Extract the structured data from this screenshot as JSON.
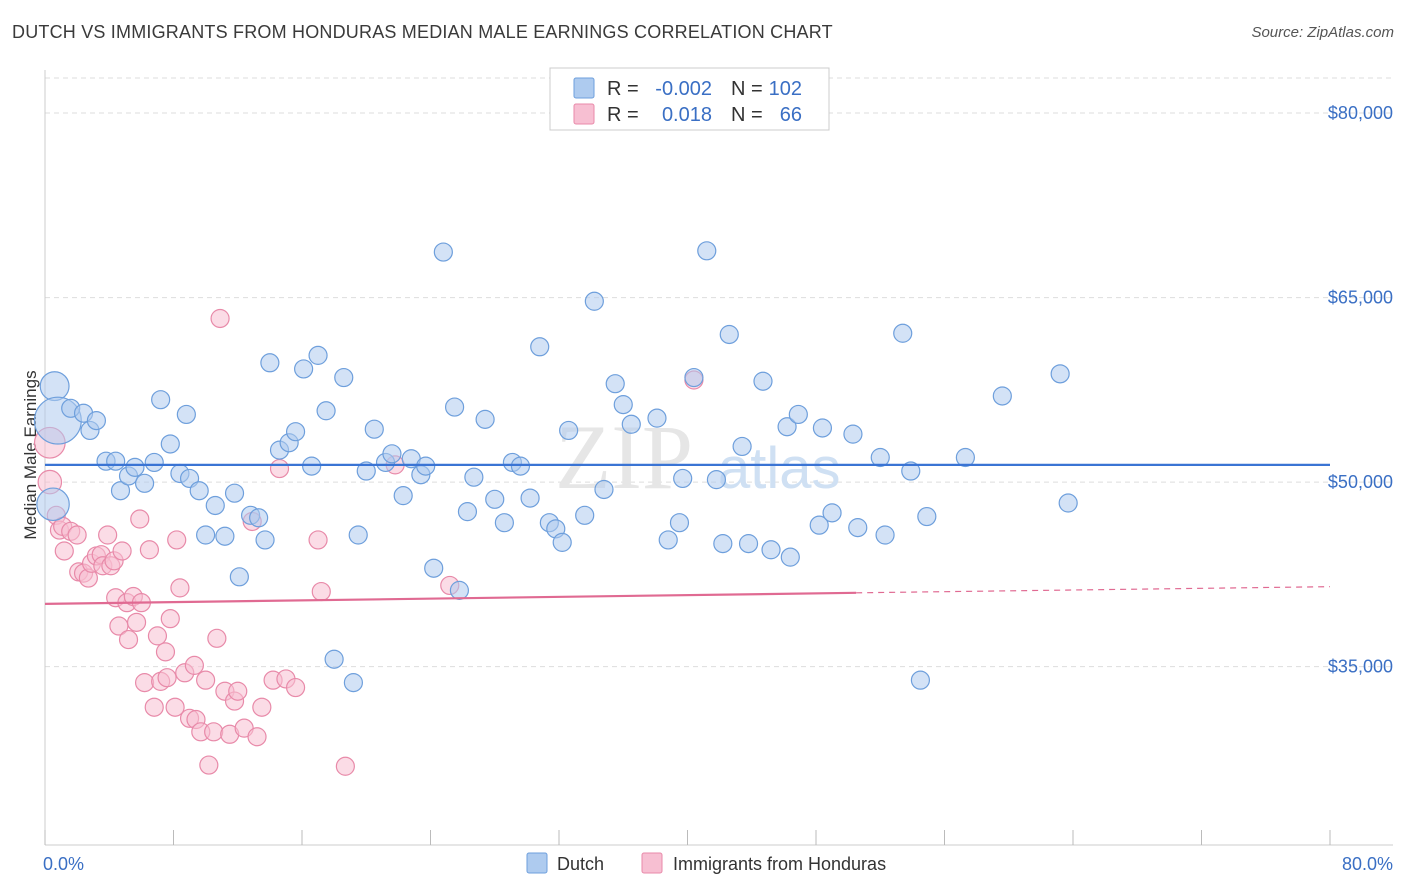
{
  "title": "DUTCH VS IMMIGRANTS FROM HONDURAS MEDIAN MALE EARNINGS CORRELATION CHART",
  "source": "Source: ZipAtlas.com",
  "watermark": {
    "zip": "ZIP",
    "atlas": "atlas"
  },
  "legend_box": {
    "rows": [
      {
        "r_label": "R =",
        "r_value": "-0.002",
        "n_label": "N =",
        "n_value": "102"
      },
      {
        "r_label": "R =",
        "r_value": "0.018",
        "n_label": "N =",
        "n_value": "66"
      }
    ]
  },
  "colors": {
    "dutch_fill": "#aecbef",
    "dutch_stroke": "#6e9fdc",
    "dutch_line": "#3a74d4",
    "hond_fill": "#f7bfd2",
    "hond_stroke": "#e88aa9",
    "hond_line": "#e06a92",
    "axis_text": "#3a6fc4",
    "grid": "#dddddd"
  },
  "chart_data": {
    "type": "scatter",
    "title": "DUTCH VS IMMIGRANTS FROM HONDURAS MEDIAN MALE EARNINGS CORRELATION CHART",
    "xlabel": "",
    "ylabel": "Median Male Earnings",
    "xlim": [
      0,
      80
    ],
    "ylim": [
      20500,
      83500
    ],
    "x_tick_labels": [
      "0.0%",
      "80.0%"
    ],
    "y_ticks": [
      35000,
      50000,
      65000,
      80000
    ],
    "y_tick_labels": [
      "$35,000",
      "$50,000",
      "$65,000",
      "$80,000"
    ],
    "grid": true,
    "legend_position": "bottom",
    "series": [
      {
        "name": "Dutch",
        "R": -0.002,
        "N": 102,
        "trend": {
          "x": [
            0,
            80
          ],
          "y": [
            51400,
            51400
          ]
        },
        "points": [
          [
            0.6,
            57800,
            1.6
          ],
          [
            0.8,
            55000,
            2.6
          ],
          [
            0.5,
            48200,
            1.8
          ],
          [
            1.6,
            56000,
            1.0
          ],
          [
            2.4,
            55600,
            1.0
          ],
          [
            2.8,
            54200,
            1.0
          ],
          [
            3.2,
            55000,
            1.0
          ],
          [
            3.8,
            51700,
            1.0
          ],
          [
            4.4,
            51700,
            1.0
          ],
          [
            4.7,
            49300,
            1.0
          ],
          [
            5.2,
            50500,
            1.0
          ],
          [
            5.6,
            51200,
            1.0
          ],
          [
            6.2,
            49900,
            1.0
          ],
          [
            6.8,
            51600,
            1.0
          ],
          [
            7.2,
            56700,
            1.0
          ],
          [
            7.8,
            53100,
            1.0
          ],
          [
            8.4,
            50700,
            1.0
          ],
          [
            8.8,
            55500,
            1.0
          ],
          [
            9.0,
            50300,
            1.0
          ],
          [
            9.6,
            49300,
            1.0
          ],
          [
            10.0,
            45700,
            1.0
          ],
          [
            10.6,
            48100,
            1.0
          ],
          [
            11.2,
            45600,
            1.0
          ],
          [
            11.8,
            49100,
            1.0
          ],
          [
            12.1,
            42300,
            1.0
          ],
          [
            12.8,
            47300,
            1.0
          ],
          [
            13.3,
            47100,
            1.0
          ],
          [
            13.7,
            45300,
            1.0
          ],
          [
            14.0,
            59700,
            1.0
          ],
          [
            14.6,
            52600,
            1.0
          ],
          [
            15.2,
            53200,
            1.0
          ],
          [
            15.6,
            54100,
            1.0
          ],
          [
            16.1,
            59200,
            1.0
          ],
          [
            16.6,
            51300,
            1.0
          ],
          [
            17.0,
            60300,
            1.0
          ],
          [
            17.5,
            55800,
            1.0
          ],
          [
            18.0,
            35600,
            1.0
          ],
          [
            18.6,
            58500,
            1.0
          ],
          [
            19.2,
            33700,
            1.0
          ],
          [
            19.5,
            45700,
            1.0
          ],
          [
            20.0,
            50900,
            1.0
          ],
          [
            20.5,
            54300,
            1.0
          ],
          [
            21.2,
            51600,
            1.0
          ],
          [
            21.6,
            52300,
            1.0
          ],
          [
            22.3,
            48900,
            1.0
          ],
          [
            22.8,
            51900,
            1.0
          ],
          [
            23.4,
            50600,
            1.0
          ],
          [
            23.7,
            51300,
            1.0
          ],
          [
            24.2,
            43000,
            1.0
          ],
          [
            24.8,
            68700,
            1.0
          ],
          [
            25.5,
            56100,
            1.0
          ],
          [
            25.8,
            41200,
            1.0
          ],
          [
            26.3,
            47600,
            1.0
          ],
          [
            26.7,
            50400,
            1.0
          ],
          [
            27.4,
            55100,
            1.0
          ],
          [
            28.0,
            48600,
            1.0
          ],
          [
            28.6,
            46700,
            1.0
          ],
          [
            29.1,
            51600,
            1.0
          ],
          [
            29.6,
            51300,
            1.0
          ],
          [
            30.2,
            48700,
            1.0
          ],
          [
            30.8,
            61000,
            1.0
          ],
          [
            31.4,
            46700,
            1.0
          ],
          [
            31.8,
            46200,
            1.0
          ],
          [
            32.2,
            45100,
            1.0
          ],
          [
            32.6,
            54200,
            1.0
          ],
          [
            33.6,
            47300,
            1.0
          ],
          [
            34.2,
            64700,
            1.0
          ],
          [
            34.8,
            49400,
            1.0
          ],
          [
            35.5,
            58000,
            1.0
          ],
          [
            36.0,
            56300,
            1.0
          ],
          [
            36.5,
            54700,
            1.0
          ],
          [
            38.1,
            55200,
            1.0
          ],
          [
            38.8,
            45300,
            1.0
          ],
          [
            39.5,
            46700,
            1.0
          ],
          [
            39.7,
            50300,
            1.0
          ],
          [
            40.4,
            58500,
            1.0
          ],
          [
            41.2,
            68800,
            1.0
          ],
          [
            41.8,
            50200,
            1.0
          ],
          [
            42.2,
            45000,
            1.0
          ],
          [
            42.6,
            62000,
            1.0
          ],
          [
            43.4,
            52900,
            1.0
          ],
          [
            43.8,
            45000,
            1.0
          ],
          [
            44.7,
            58200,
            1.0
          ],
          [
            45.2,
            44500,
            1.0
          ],
          [
            46.2,
            54500,
            1.0
          ],
          [
            46.4,
            43900,
            1.0
          ],
          [
            46.9,
            55500,
            1.0
          ],
          [
            48.2,
            46500,
            1.0
          ],
          [
            48.4,
            54400,
            1.0
          ],
          [
            49.0,
            47500,
            1.0
          ],
          [
            50.3,
            53900,
            1.0
          ],
          [
            50.6,
            46300,
            1.0
          ],
          [
            52.0,
            52000,
            1.0
          ],
          [
            52.3,
            45700,
            1.0
          ],
          [
            53.4,
            62100,
            1.0
          ],
          [
            53.9,
            50900,
            1.0
          ],
          [
            54.5,
            33900,
            1.0
          ],
          [
            54.9,
            47200,
            1.0
          ],
          [
            57.3,
            52000,
            1.0
          ],
          [
            59.6,
            57000,
            1.0
          ],
          [
            63.2,
            58800,
            1.0
          ],
          [
            63.7,
            48300,
            1.0
          ]
        ]
      },
      {
        "name": "Immigrants from Honduras",
        "R": 0.018,
        "N": 66,
        "trend": {
          "x": [
            0,
            50.5
          ],
          "y": [
            40100,
            41000
          ],
          "dash_to": {
            "x": 80,
            "y": 41500
          }
        },
        "points": [
          [
            0.3,
            53200,
            1.7
          ],
          [
            0.3,
            50000,
            1.3
          ],
          [
            0.7,
            47300,
            1.0
          ],
          [
            0.9,
            46100,
            1.0
          ],
          [
            1.1,
            46400,
            1.0
          ],
          [
            1.2,
            44400,
            1.0
          ],
          [
            1.6,
            46000,
            1.0
          ],
          [
            2.0,
            45700,
            1.0
          ],
          [
            2.1,
            42700,
            1.0
          ],
          [
            2.4,
            42600,
            1.0
          ],
          [
            2.7,
            42200,
            1.0
          ],
          [
            2.9,
            43400,
            1.0
          ],
          [
            3.2,
            44000,
            1.0
          ],
          [
            3.5,
            44100,
            1.0
          ],
          [
            3.6,
            43200,
            1.0
          ],
          [
            3.9,
            45700,
            1.0
          ],
          [
            4.1,
            43200,
            1.0
          ],
          [
            4.3,
            43600,
            1.0
          ],
          [
            4.4,
            40600,
            1.0
          ],
          [
            4.6,
            38300,
            1.0
          ],
          [
            4.8,
            44400,
            1.0
          ],
          [
            5.1,
            40200,
            1.0
          ],
          [
            5.2,
            37200,
            1.0
          ],
          [
            5.5,
            40700,
            1.0
          ],
          [
            5.7,
            38600,
            1.0
          ],
          [
            5.9,
            47000,
            1.0
          ],
          [
            6.0,
            40200,
            1.0
          ],
          [
            6.2,
            33700,
            1.0
          ],
          [
            6.5,
            44500,
            1.0
          ],
          [
            6.8,
            31700,
            1.0
          ],
          [
            7.0,
            37500,
            1.0
          ],
          [
            7.2,
            33800,
            1.0
          ],
          [
            7.5,
            36200,
            1.0
          ],
          [
            7.6,
            34100,
            1.0
          ],
          [
            7.8,
            38900,
            1.0
          ],
          [
            8.1,
            31700,
            1.0
          ],
          [
            8.2,
            45300,
            1.0
          ],
          [
            8.4,
            41400,
            1.0
          ],
          [
            8.7,
            34500,
            1.0
          ],
          [
            9.0,
            30800,
            1.0
          ],
          [
            9.3,
            35100,
            1.0
          ],
          [
            9.4,
            30700,
            1.0
          ],
          [
            9.7,
            29700,
            1.0
          ],
          [
            10.0,
            33900,
            1.0
          ],
          [
            10.2,
            27000,
            1.0
          ],
          [
            10.5,
            29700,
            1.0
          ],
          [
            10.7,
            37300,
            1.0
          ],
          [
            10.9,
            63300,
            1.0
          ],
          [
            11.2,
            33000,
            1.0
          ],
          [
            11.5,
            29500,
            1.0
          ],
          [
            11.8,
            32200,
            1.0
          ],
          [
            12.0,
            33000,
            1.0
          ],
          [
            12.4,
            30000,
            1.0
          ],
          [
            12.9,
            46800,
            1.0
          ],
          [
            13.2,
            29300,
            1.0
          ],
          [
            13.5,
            31700,
            1.0
          ],
          [
            14.2,
            33900,
            1.0
          ],
          [
            14.6,
            51100,
            1.0
          ],
          [
            15.0,
            34000,
            1.0
          ],
          [
            15.6,
            33300,
            1.0
          ],
          [
            17.0,
            45300,
            1.0
          ],
          [
            17.2,
            41100,
            1.0
          ],
          [
            18.7,
            26900,
            1.0
          ],
          [
            21.8,
            51400,
            1.0
          ],
          [
            25.2,
            41600,
            1.0
          ],
          [
            40.4,
            58300,
            1.0
          ]
        ]
      }
    ]
  },
  "bottom_legend": [
    {
      "label": "Dutch"
    },
    {
      "label": "Immigrants from Honduras"
    }
  ]
}
